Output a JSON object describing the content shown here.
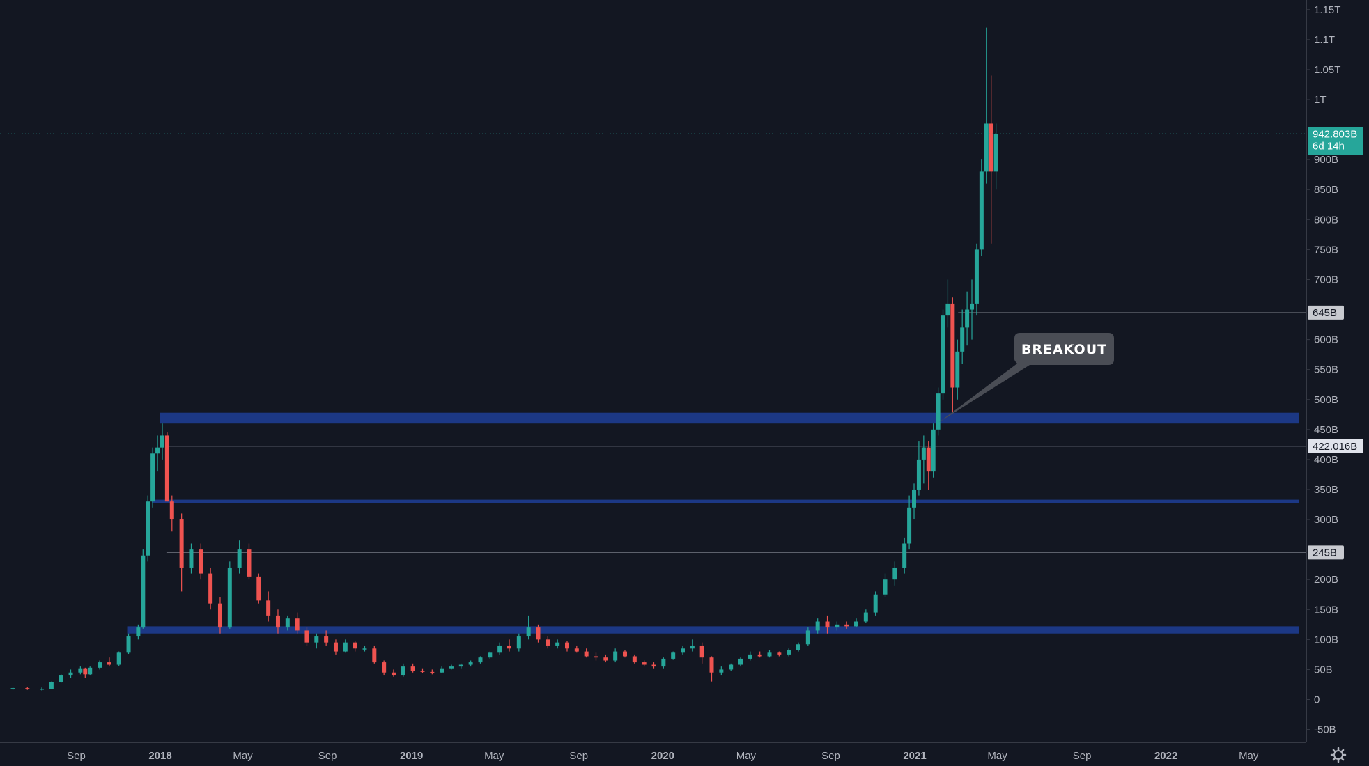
{
  "chart_data": {
    "type": "candlestick",
    "title": "",
    "xlabel": "",
    "ylabel": "",
    "ylim": [
      -60,
      1160
    ],
    "y_unit": "B",
    "y_ticks": [
      {
        "v": 1150,
        "label": "1.15T"
      },
      {
        "v": 1100,
        "label": "1.1T"
      },
      {
        "v": 1050,
        "label": "1.05T"
      },
      {
        "v": 1000,
        "label": "1T"
      },
      {
        "v": 900,
        "label": "900B"
      },
      {
        "v": 850,
        "label": "850B"
      },
      {
        "v": 800,
        "label": "800B"
      },
      {
        "v": 750,
        "label": "750B"
      },
      {
        "v": 700,
        "label": "700B"
      },
      {
        "v": 600,
        "label": "600B"
      },
      {
        "v": 550,
        "label": "550B"
      },
      {
        "v": 500,
        "label": "500B"
      },
      {
        "v": 450,
        "label": "450B"
      },
      {
        "v": 400,
        "label": "400B"
      },
      {
        "v": 350,
        "label": "350B"
      },
      {
        "v": 300,
        "label": "300B"
      },
      {
        "v": 200,
        "label": "200B"
      },
      {
        "v": 150,
        "label": "150B"
      },
      {
        "v": 100,
        "label": "100B"
      },
      {
        "v": 50,
        "label": "50B"
      },
      {
        "v": 0,
        "label": "0"
      },
      {
        "v": -50,
        "label": "-50B"
      }
    ],
    "x_range": [
      "2017-06-01",
      "2022-07-31"
    ],
    "x_ticks": [
      {
        "date": "2017-09-01",
        "label": "Sep",
        "bold": false
      },
      {
        "date": "2018-01-01",
        "label": "2018",
        "bold": true
      },
      {
        "date": "2018-05-01",
        "label": "May",
        "bold": false
      },
      {
        "date": "2018-09-01",
        "label": "Sep",
        "bold": false
      },
      {
        "date": "2019-01-01",
        "label": "2019",
        "bold": true
      },
      {
        "date": "2019-05-01",
        "label": "May",
        "bold": false
      },
      {
        "date": "2019-09-01",
        "label": "Sep",
        "bold": false
      },
      {
        "date": "2020-01-01",
        "label": "2020",
        "bold": true
      },
      {
        "date": "2020-05-01",
        "label": "May",
        "bold": false
      },
      {
        "date": "2020-09-01",
        "label": "Sep",
        "bold": false
      },
      {
        "date": "2021-01-01",
        "label": "2021",
        "bold": true
      },
      {
        "date": "2021-05-01",
        "label": "May",
        "bold": false
      },
      {
        "date": "2021-09-01",
        "label": "Sep",
        "bold": false
      },
      {
        "date": "2022-01-01",
        "label": "2022",
        "bold": true
      },
      {
        "date": "2022-05-01",
        "label": "May",
        "bold": false
      }
    ],
    "price_line": {
      "value": 942.803,
      "label": "942.803B",
      "sublabel": "6d 14h"
    },
    "h_lines": [
      {
        "value": 645,
        "label": "645B",
        "start": "2021-03-05"
      },
      {
        "value": 422.016,
        "label": "422.016B",
        "start": "2018-01-10"
      },
      {
        "value": 245,
        "label": "245B",
        "start": "2018-01-10"
      }
    ],
    "zones": [
      {
        "low": 460,
        "high": 478,
        "start": "2017-12-31"
      },
      {
        "low": 327,
        "high": 333,
        "start": "2017-12-20"
      },
      {
        "low": 110,
        "high": 122,
        "start": "2017-11-15"
      }
    ],
    "annotation": {
      "text": "BREAKOUT",
      "target_date": "2021-02-05",
      "target_value": 462
    },
    "series": [
      {
        "values": [
          [
            "2017-06-01",
            18,
            20,
            16,
            19
          ],
          [
            "2017-06-22",
            19,
            21,
            16,
            17
          ],
          [
            "2017-07-13",
            17,
            20,
            15,
            18
          ],
          [
            "2017-07-27",
            18,
            30,
            18,
            29
          ],
          [
            "2017-08-10",
            29,
            42,
            28,
            40
          ],
          [
            "2017-08-24",
            40,
            50,
            36,
            45
          ],
          [
            "2017-09-07",
            45,
            55,
            42,
            52
          ],
          [
            "2017-09-14",
            52,
            53,
            36,
            42
          ],
          [
            "2017-09-21",
            42,
            55,
            40,
            53
          ],
          [
            "2017-10-05",
            53,
            65,
            50,
            62
          ],
          [
            "2017-10-19",
            62,
            70,
            55,
            58
          ],
          [
            "2017-11-02",
            58,
            80,
            56,
            78
          ],
          [
            "2017-11-16",
            78,
            110,
            76,
            105
          ],
          [
            "2017-11-30",
            105,
            125,
            100,
            120
          ],
          [
            "2017-12-07",
            120,
            250,
            118,
            240
          ],
          [
            "2017-12-14",
            240,
            340,
            230,
            330
          ],
          [
            "2017-12-21",
            330,
            420,
            320,
            410
          ],
          [
            "2017-12-28",
            410,
            440,
            380,
            420
          ],
          [
            "2018-01-04",
            420,
            460,
            400,
            440
          ],
          [
            "2018-01-11",
            440,
            445,
            330,
            330
          ],
          [
            "2018-01-18",
            330,
            340,
            280,
            300
          ],
          [
            "2018-02-01",
            300,
            310,
            180,
            220
          ],
          [
            "2018-02-15",
            220,
            260,
            210,
            250
          ],
          [
            "2018-03-01",
            250,
            260,
            200,
            210
          ],
          [
            "2018-03-15",
            210,
            220,
            150,
            160
          ],
          [
            "2018-03-29",
            160,
            170,
            110,
            120
          ],
          [
            "2018-04-12",
            120,
            230,
            118,
            220
          ],
          [
            "2018-04-26",
            220,
            265,
            210,
            250
          ],
          [
            "2018-05-10",
            250,
            260,
            200,
            205
          ],
          [
            "2018-05-24",
            205,
            210,
            160,
            165
          ],
          [
            "2018-06-07",
            165,
            180,
            130,
            140
          ],
          [
            "2018-06-21",
            140,
            150,
            110,
            120
          ],
          [
            "2018-07-05",
            120,
            140,
            115,
            135
          ],
          [
            "2018-07-19",
            135,
            145,
            110,
            115
          ],
          [
            "2018-08-02",
            115,
            120,
            90,
            95
          ],
          [
            "2018-08-16",
            95,
            110,
            85,
            105
          ],
          [
            "2018-08-30",
            105,
            115,
            90,
            95
          ],
          [
            "2018-09-13",
            95,
            100,
            75,
            80
          ],
          [
            "2018-09-27",
            80,
            100,
            78,
            95
          ],
          [
            "2018-10-11",
            95,
            98,
            80,
            85
          ],
          [
            "2018-10-25",
            85,
            90,
            80,
            85
          ],
          [
            "2018-11-08",
            85,
            90,
            60,
            62
          ],
          [
            "2018-11-22",
            62,
            65,
            40,
            45
          ],
          [
            "2018-12-06",
            45,
            50,
            38,
            40
          ],
          [
            "2018-12-20",
            40,
            60,
            38,
            55
          ],
          [
            "2019-01-03",
            55,
            60,
            45,
            48
          ],
          [
            "2019-01-17",
            48,
            52,
            44,
            46
          ],
          [
            "2019-01-31",
            46,
            50,
            42,
            45
          ],
          [
            "2019-02-14",
            45,
            55,
            44,
            52
          ],
          [
            "2019-02-28",
            52,
            58,
            50,
            55
          ],
          [
            "2019-03-14",
            55,
            60,
            52,
            58
          ],
          [
            "2019-03-28",
            58,
            65,
            55,
            62
          ],
          [
            "2019-04-11",
            62,
            72,
            60,
            70
          ],
          [
            "2019-04-25",
            70,
            80,
            68,
            78
          ],
          [
            "2019-05-09",
            78,
            95,
            75,
            90
          ],
          [
            "2019-05-23",
            90,
            100,
            80,
            85
          ],
          [
            "2019-06-06",
            85,
            110,
            80,
            105
          ],
          [
            "2019-06-20",
            105,
            140,
            100,
            120
          ],
          [
            "2019-07-04",
            120,
            125,
            95,
            100
          ],
          [
            "2019-07-18",
            100,
            105,
            85,
            90
          ],
          [
            "2019-08-01",
            90,
            100,
            85,
            95
          ],
          [
            "2019-08-15",
            95,
            98,
            80,
            85
          ],
          [
            "2019-08-29",
            85,
            90,
            78,
            80
          ],
          [
            "2019-09-12",
            80,
            85,
            70,
            72
          ],
          [
            "2019-09-26",
            72,
            78,
            65,
            70
          ],
          [
            "2019-10-10",
            70,
            75,
            62,
            65
          ],
          [
            "2019-10-24",
            65,
            85,
            62,
            80
          ],
          [
            "2019-11-07",
            80,
            82,
            70,
            72
          ],
          [
            "2019-11-21",
            72,
            75,
            60,
            62
          ],
          [
            "2019-12-05",
            62,
            65,
            55,
            58
          ],
          [
            "2019-12-19",
            58,
            62,
            52,
            55
          ],
          [
            "2020-01-02",
            55,
            70,
            52,
            68
          ],
          [
            "2020-01-16",
            68,
            80,
            66,
            78
          ],
          [
            "2020-01-30",
            78,
            90,
            75,
            85
          ],
          [
            "2020-02-13",
            85,
            100,
            80,
            90
          ],
          [
            "2020-02-27",
            90,
            95,
            60,
            70
          ],
          [
            "2020-03-12",
            70,
            72,
            30,
            45
          ],
          [
            "2020-03-26",
            45,
            55,
            40,
            50
          ],
          [
            "2020-04-09",
            50,
            60,
            48,
            58
          ],
          [
            "2020-04-23",
            58,
            70,
            55,
            68
          ],
          [
            "2020-05-07",
            68,
            80,
            65,
            75
          ],
          [
            "2020-05-21",
            75,
            80,
            70,
            72
          ],
          [
            "2020-06-04",
            72,
            82,
            70,
            78
          ],
          [
            "2020-06-18",
            78,
            80,
            72,
            75
          ],
          [
            "2020-07-02",
            75,
            85,
            72,
            82
          ],
          [
            "2020-07-16",
            82,
            95,
            80,
            92
          ],
          [
            "2020-07-30",
            92,
            120,
            90,
            115
          ],
          [
            "2020-08-13",
            115,
            135,
            110,
            130
          ],
          [
            "2020-08-27",
            130,
            140,
            110,
            120
          ],
          [
            "2020-09-10",
            120,
            130,
            115,
            125
          ],
          [
            "2020-09-24",
            125,
            130,
            118,
            122
          ],
          [
            "2020-10-08",
            122,
            135,
            120,
            130
          ],
          [
            "2020-10-22",
            130,
            150,
            128,
            145
          ],
          [
            "2020-11-05",
            145,
            180,
            140,
            175
          ],
          [
            "2020-11-19",
            175,
            210,
            170,
            200
          ],
          [
            "2020-12-03",
            200,
            230,
            190,
            220
          ],
          [
            "2020-12-17",
            220,
            270,
            210,
            260
          ],
          [
            "2020-12-24",
            260,
            340,
            250,
            320
          ],
          [
            "2020-12-31",
            320,
            360,
            300,
            350
          ],
          [
            "2021-01-07",
            350,
            430,
            340,
            400
          ],
          [
            "2021-01-14",
            400,
            440,
            360,
            420
          ],
          [
            "2021-01-21",
            420,
            430,
            350,
            380
          ],
          [
            "2021-01-28",
            380,
            460,
            370,
            450
          ],
          [
            "2021-02-04",
            450,
            520,
            440,
            510
          ],
          [
            "2021-02-11",
            510,
            650,
            500,
            640
          ],
          [
            "2021-02-18",
            640,
            700,
            620,
            660
          ],
          [
            "2021-02-25",
            660,
            670,
            480,
            520
          ],
          [
            "2021-03-04",
            520,
            600,
            500,
            580
          ],
          [
            "2021-03-11",
            580,
            650,
            560,
            620
          ],
          [
            "2021-03-18",
            620,
            680,
            590,
            650
          ],
          [
            "2021-03-25",
            650,
            700,
            600,
            660
          ],
          [
            "2021-04-01",
            660,
            760,
            640,
            750
          ],
          [
            "2021-04-08",
            750,
            900,
            740,
            880
          ],
          [
            "2021-04-15",
            880,
            1120,
            860,
            960
          ],
          [
            "2021-04-22",
            960,
            1040,
            760,
            880
          ],
          [
            "2021-04-29",
            880,
            960,
            850,
            942.803
          ]
        ]
      }
    ]
  },
  "colors": {
    "background": "#131722",
    "up": "#26a69a",
    "down": "#ef5350",
    "zone": "#2962ff",
    "grid_line": "#787b86",
    "price_tag": "#26a69a",
    "axis_text": "#b2b5be",
    "callout_bg": "#4a4d55"
  },
  "icons": {
    "settings": "gear-icon"
  }
}
